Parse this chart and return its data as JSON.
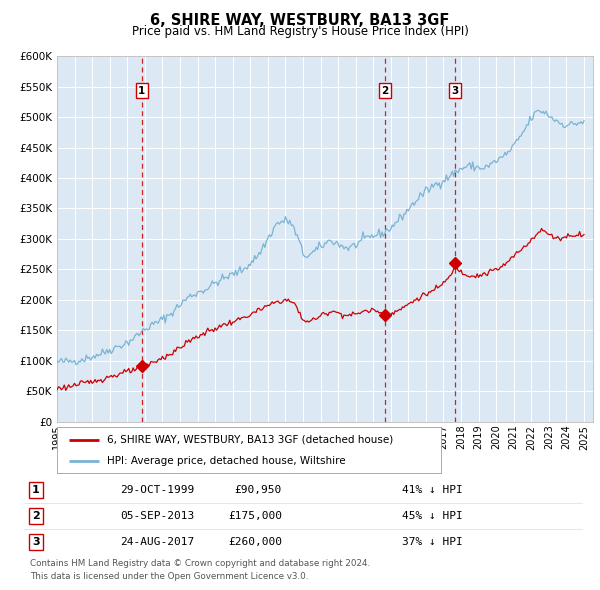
{
  "title": "6, SHIRE WAY, WESTBURY, BA13 3GF",
  "subtitle": "Price paid vs. HM Land Registry's House Price Index (HPI)",
  "background_color": "#dce9f5",
  "fig_bg_color": "#ffffff",
  "grid_color": "#ffffff",
  "hpi_line_color": "#7ab3d4",
  "price_line_color": "#cc0000",
  "marker_color": "#cc0000",
  "vline_color": "#cc0000",
  "ylim": [
    0,
    600000
  ],
  "yticks": [
    0,
    50000,
    100000,
    150000,
    200000,
    250000,
    300000,
    350000,
    400000,
    450000,
    500000,
    550000,
    600000
  ],
  "sales": [
    {
      "date_num": 1999.83,
      "price": 90950,
      "label": "1"
    },
    {
      "date_num": 2013.67,
      "price": 175000,
      "label": "2"
    },
    {
      "date_num": 2017.65,
      "price": 260000,
      "label": "3"
    }
  ],
  "table_rows": [
    [
      "1",
      "29-OCT-1999",
      "£90,950",
      "41% ↓ HPI"
    ],
    [
      "2",
      "05-SEP-2013",
      "£175,000",
      "45% ↓ HPI"
    ],
    [
      "3",
      "24-AUG-2017",
      "£260,000",
      "37% ↓ HPI"
    ]
  ],
  "legend_entries": [
    "6, SHIRE WAY, WESTBURY, BA13 3GF (detached house)",
    "HPI: Average price, detached house, Wiltshire"
  ],
  "footer_text": "Contains HM Land Registry data © Crown copyright and database right 2024.\nThis data is licensed under the Open Government Licence v3.0.",
  "xmin": 1995.0,
  "xmax": 2025.5,
  "hpi_key_points": [
    [
      1995.0,
      98000
    ],
    [
      1995.5,
      99000
    ],
    [
      1996.0,
      100000
    ],
    [
      1996.5,
      103000
    ],
    [
      1997.0,
      107000
    ],
    [
      1997.5,
      112000
    ],
    [
      1998.0,
      118000
    ],
    [
      1998.5,
      124000
    ],
    [
      1999.0,
      130000
    ],
    [
      1999.5,
      140000
    ],
    [
      2000.0,
      152000
    ],
    [
      2000.5,
      160000
    ],
    [
      2001.0,
      168000
    ],
    [
      2001.5,
      178000
    ],
    [
      2002.0,
      192000
    ],
    [
      2002.5,
      205000
    ],
    [
      2003.0,
      212000
    ],
    [
      2003.5,
      218000
    ],
    [
      2004.0,
      228000
    ],
    [
      2004.5,
      235000
    ],
    [
      2005.0,
      242000
    ],
    [
      2005.5,
      248000
    ],
    [
      2006.0,
      260000
    ],
    [
      2006.5,
      275000
    ],
    [
      2007.0,
      300000
    ],
    [
      2007.5,
      325000
    ],
    [
      2008.0,
      330000
    ],
    [
      2008.3,
      328000
    ],
    [
      2008.8,
      295000
    ],
    [
      2009.0,
      275000
    ],
    [
      2009.3,
      272000
    ],
    [
      2009.6,
      278000
    ],
    [
      2009.9,
      285000
    ],
    [
      2010.3,
      293000
    ],
    [
      2010.6,
      298000
    ],
    [
      2011.0,
      292000
    ],
    [
      2011.3,
      287000
    ],
    [
      2011.6,
      285000
    ],
    [
      2012.0,
      290000
    ],
    [
      2012.4,
      298000
    ],
    [
      2012.8,
      303000
    ],
    [
      2013.2,
      307000
    ],
    [
      2013.6,
      310000
    ],
    [
      2014.0,
      318000
    ],
    [
      2014.4,
      330000
    ],
    [
      2014.8,
      342000
    ],
    [
      2015.2,
      355000
    ],
    [
      2015.6,
      368000
    ],
    [
      2016.0,
      378000
    ],
    [
      2016.4,
      387000
    ],
    [
      2016.8,
      393000
    ],
    [
      2017.2,
      400000
    ],
    [
      2017.6,
      408000
    ],
    [
      2018.0,
      415000
    ],
    [
      2018.4,
      420000
    ],
    [
      2018.8,
      418000
    ],
    [
      2019.2,
      416000
    ],
    [
      2019.6,
      420000
    ],
    [
      2020.0,
      428000
    ],
    [
      2020.4,
      435000
    ],
    [
      2020.8,
      445000
    ],
    [
      2021.2,
      460000
    ],
    [
      2021.6,
      478000
    ],
    [
      2022.0,
      498000
    ],
    [
      2022.3,
      508000
    ],
    [
      2022.6,
      510000
    ],
    [
      2022.9,
      505000
    ],
    [
      2023.2,
      498000
    ],
    [
      2023.5,
      493000
    ],
    [
      2023.8,
      488000
    ],
    [
      2024.2,
      487000
    ],
    [
      2024.6,
      490000
    ],
    [
      2025.0,
      492000
    ]
  ],
  "price_key_points": [
    [
      1995.0,
      55000
    ],
    [
      1995.5,
      57000
    ],
    [
      1996.0,
      60000
    ],
    [
      1996.5,
      63000
    ],
    [
      1997.0,
      66000
    ],
    [
      1997.5,
      70000
    ],
    [
      1998.0,
      74000
    ],
    [
      1998.5,
      78000
    ],
    [
      1999.0,
      82000
    ],
    [
      1999.5,
      86000
    ],
    [
      1999.83,
      90950
    ],
    [
      2000.2,
      94000
    ],
    [
      2000.6,
      99000
    ],
    [
      2001.0,
      105000
    ],
    [
      2001.5,
      112000
    ],
    [
      2002.0,
      122000
    ],
    [
      2002.5,
      132000
    ],
    [
      2003.0,
      140000
    ],
    [
      2003.5,
      147000
    ],
    [
      2004.0,
      153000
    ],
    [
      2004.5,
      159000
    ],
    [
      2005.0,
      164000
    ],
    [
      2005.5,
      169000
    ],
    [
      2006.0,
      176000
    ],
    [
      2006.5,
      183000
    ],
    [
      2007.0,
      190000
    ],
    [
      2007.5,
      197000
    ],
    [
      2008.0,
      200000
    ],
    [
      2008.5,
      195000
    ],
    [
      2009.0,
      167000
    ],
    [
      2009.4,
      165000
    ],
    [
      2009.8,
      170000
    ],
    [
      2010.2,
      177000
    ],
    [
      2010.6,
      182000
    ],
    [
      2011.0,
      179000
    ],
    [
      2011.4,
      175000
    ],
    [
      2011.8,
      175000
    ],
    [
      2012.2,
      179000
    ],
    [
      2012.6,
      182000
    ],
    [
      2013.0,
      183000
    ],
    [
      2013.4,
      181000
    ],
    [
      2013.67,
      175000
    ],
    [
      2013.9,
      177000
    ],
    [
      2014.2,
      180000
    ],
    [
      2014.6,
      185000
    ],
    [
      2015.0,
      193000
    ],
    [
      2015.4,
      200000
    ],
    [
      2015.8,
      207000
    ],
    [
      2016.2,
      212000
    ],
    [
      2016.6,
      218000
    ],
    [
      2017.0,
      228000
    ],
    [
      2017.4,
      238000
    ],
    [
      2017.65,
      260000
    ],
    [
      2017.9,
      248000
    ],
    [
      2018.2,
      243000
    ],
    [
      2018.6,
      240000
    ],
    [
      2019.0,
      240000
    ],
    [
      2019.4,
      243000
    ],
    [
      2019.8,
      248000
    ],
    [
      2020.2,
      252000
    ],
    [
      2020.6,
      260000
    ],
    [
      2021.0,
      272000
    ],
    [
      2021.4,
      282000
    ],
    [
      2021.8,
      293000
    ],
    [
      2022.1,
      303000
    ],
    [
      2022.4,
      310000
    ],
    [
      2022.7,
      315000
    ],
    [
      2023.0,
      307000
    ],
    [
      2023.3,
      303000
    ],
    [
      2023.7,
      301000
    ],
    [
      2024.1,
      305000
    ],
    [
      2024.5,
      307000
    ],
    [
      2025.0,
      308000
    ]
  ]
}
